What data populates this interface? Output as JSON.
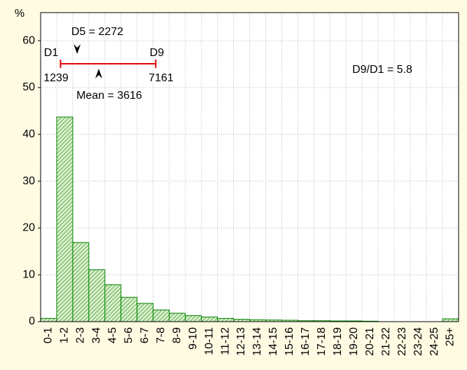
{
  "chart_data": {
    "type": "bar",
    "y_label": "%",
    "categories": [
      "0-1",
      "1-2",
      "2-3",
      "3-4",
      "4-5",
      "5-6",
      "6-7",
      "7-8",
      "8-9",
      "9-10",
      "10-11",
      "11-12",
      "12-13",
      "13-14",
      "14-15",
      "15-16",
      "16-17",
      "17-18",
      "18-19",
      "19-20",
      "20-21",
      "21-22",
      "22-23",
      "23-24",
      "24-25",
      "25+"
    ],
    "values": [
      0.7,
      43.7,
      16.9,
      11.1,
      7.9,
      5.2,
      3.9,
      2.5,
      1.8,
      1.3,
      1.0,
      0.7,
      0.5,
      0.4,
      0.35,
      0.3,
      0.2,
      0.2,
      0.15,
      0.15,
      0.1,
      0,
      0,
      0,
      0,
      0.6
    ],
    "color": "#008000",
    "ylim": [
      0,
      66
    ],
    "yticks": [
      0,
      10,
      20,
      30,
      40,
      50,
      60
    ],
    "grid": true,
    "annotations": {
      "d1_label": "D1",
      "d1": 1239,
      "d9_label": "D9",
      "d9": 7161,
      "d5_label": "D5 = 2272",
      "d5": 2272,
      "mean_label": "Mean = 3616",
      "mean": 3616,
      "ratio_label": "D9/D1 = 5.8",
      "interval_color": "#e00000"
    }
  }
}
